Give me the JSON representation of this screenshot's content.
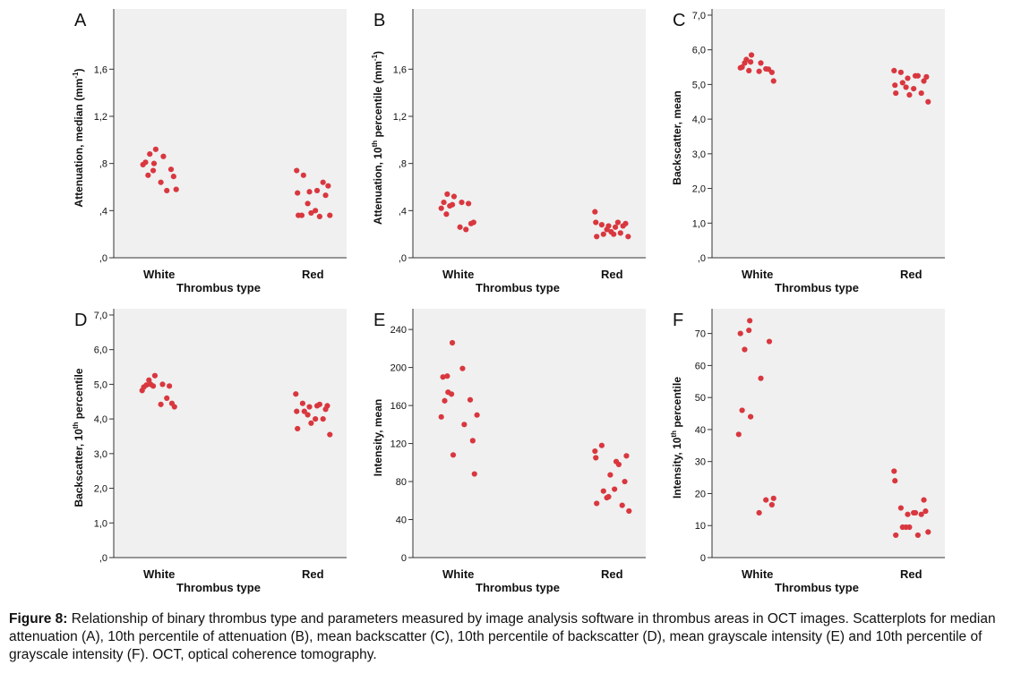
{
  "caption": {
    "label": "Figure 8:",
    "text": " Relationship of binary thrombus type and parameters measured by image analysis software in thrombus areas in OCT images. Scatterplots for median attenuation (A), 10th percentile of attenuation (B), mean backscatter (C), 10th percentile of backscatter (D), mean grayscale intensity (E) and 10th percentile of grayscale intensity (F). OCT, optical coherence tomography."
  },
  "colors": {
    "point": "#d9373f",
    "plot_bg": "#f0f0f0",
    "axis": "#333333"
  },
  "chart_data": [
    {
      "panel": "A",
      "type": "scatter",
      "categories": [
        "White",
        "Red"
      ],
      "xlabel": "Thrombus type",
      "ylabel": "Attenuation, median (mm",
      "ylabel_sup": "-1",
      "ylabel_after": ")",
      "ylim": [
        0,
        1.9
      ],
      "yticks": [
        0,
        0.4,
        0.8,
        1.2,
        1.6
      ],
      "yticklabels": [
        ",0",
        ",4",
        ",8",
        "1,2",
        "1,6"
      ],
      "series": [
        {
          "category": "White",
          "jitter": [
            -0.19,
            -0.16,
            -0.13,
            -0.11,
            -0.07,
            -0.06,
            -0.04,
            0.02,
            0.05,
            0.09,
            0.14,
            0.17,
            0.2
          ],
          "values": [
            0.79,
            0.81,
            0.7,
            0.88,
            0.74,
            0.8,
            0.92,
            0.64,
            0.86,
            0.57,
            0.75,
            0.69,
            0.58
          ]
        },
        {
          "category": "Red",
          "jitter": [
            -0.19,
            -0.18,
            -0.17,
            -0.13,
            -0.11,
            -0.06,
            -0.04,
            -0.02,
            0.03,
            0.05,
            0.08,
            0.12,
            0.15,
            0.18,
            0.2
          ],
          "values": [
            0.74,
            0.55,
            0.36,
            0.36,
            0.7,
            0.46,
            0.56,
            0.38,
            0.4,
            0.57,
            0.35,
            0.64,
            0.53,
            0.61,
            0.36
          ]
        }
      ]
    },
    {
      "panel": "B",
      "type": "scatter",
      "categories": [
        "White",
        "Red"
      ],
      "xlabel": "Thrombus type",
      "ylabel": "Attenuation, 10",
      "ylabel_sup": "th",
      "ylabel_after": " percentile (mm",
      "ylabel_sup2": "-1",
      "ylabel_after2": ")",
      "ylim": [
        0,
        1.9
      ],
      "yticks": [
        0,
        0.4,
        0.8,
        1.2,
        1.6
      ],
      "yticklabels": [
        ",0",
        ",4",
        ",8",
        "1,2",
        "1,6"
      ],
      "series": [
        {
          "category": "White",
          "jitter": [
            -0.2,
            -0.17,
            -0.14,
            -0.13,
            -0.1,
            -0.07,
            -0.05,
            0.02,
            0.04,
            0.09,
            0.12,
            0.15,
            0.18
          ],
          "values": [
            0.42,
            0.47,
            0.37,
            0.54,
            0.44,
            0.45,
            0.52,
            0.26,
            0.47,
            0.24,
            0.46,
            0.29,
            0.3
          ]
        },
        {
          "category": "Red",
          "jitter": [
            -0.2,
            -0.19,
            -0.18,
            -0.12,
            -0.1,
            -0.06,
            -0.04,
            -0.01,
            0.02,
            0.04,
            0.07,
            0.1,
            0.13,
            0.16,
            0.19
          ],
          "values": [
            0.39,
            0.3,
            0.18,
            0.28,
            0.2,
            0.24,
            0.27,
            0.22,
            0.2,
            0.26,
            0.3,
            0.21,
            0.27,
            0.29,
            0.18
          ]
        }
      ]
    },
    {
      "panel": "C",
      "type": "scatter",
      "categories": [
        "White",
        "Red"
      ],
      "xlabel": "Thrombus type",
      "ylabel": "Backscatter, mean",
      "ylim": [
        0,
        7.0
      ],
      "yticks": [
        0,
        1,
        2,
        3,
        4,
        5,
        6,
        7
      ],
      "yticklabels": [
        ",0",
        "1,0",
        "2,0",
        "3,0",
        "4,0",
        "5,0",
        "6,0",
        "7,0"
      ],
      "series": [
        {
          "category": "White",
          "jitter": [
            -0.2,
            -0.18,
            -0.15,
            -0.13,
            -0.1,
            -0.08,
            -0.07,
            0.02,
            0.04,
            0.1,
            0.13,
            0.17,
            0.19
          ],
          "values": [
            5.48,
            5.5,
            5.62,
            5.72,
            5.4,
            5.65,
            5.85,
            5.38,
            5.62,
            5.45,
            5.44,
            5.35,
            5.1
          ]
        },
        {
          "category": "Red",
          "jitter": [
            -0.2,
            -0.19,
            -0.18,
            -0.12,
            -0.1,
            -0.06,
            -0.04,
            -0.02,
            0.03,
            0.05,
            0.08,
            0.12,
            0.15,
            0.18,
            0.2
          ],
          "values": [
            5.4,
            4.98,
            4.75,
            5.35,
            5.05,
            4.92,
            5.18,
            4.7,
            4.88,
            5.25,
            5.25,
            4.75,
            5.1,
            5.22,
            4.5
          ]
        }
      ]
    },
    {
      "panel": "D",
      "type": "scatter",
      "categories": [
        "White",
        "Red"
      ],
      "xlabel": "Thrombus type",
      "ylabel": "Backscatter, 10",
      "ylabel_sup": "th",
      "ylabel_after": " percentile",
      "ylim": [
        0,
        7.0
      ],
      "yticks": [
        0,
        1,
        2,
        3,
        4,
        5,
        6,
        7
      ],
      "yticklabels": [
        ",0",
        "1,0",
        "2,0",
        "3,0",
        "4,0",
        "5,0",
        "6,0",
        "7,0"
      ],
      "series": [
        {
          "category": "White",
          "jitter": [
            -0.2,
            -0.18,
            -0.15,
            -0.12,
            -0.1,
            -0.07,
            -0.05,
            0.02,
            0.04,
            0.09,
            0.12,
            0.15,
            0.18
          ],
          "values": [
            4.82,
            4.92,
            4.98,
            5.12,
            5.0,
            4.95,
            5.25,
            4.42,
            5.0,
            4.6,
            4.95,
            4.45,
            4.35
          ]
        },
        {
          "category": "Red",
          "jitter": [
            -0.2,
            -0.19,
            -0.18,
            -0.12,
            -0.1,
            -0.06,
            -0.04,
            -0.02,
            0.03,
            0.05,
            0.08,
            0.12,
            0.15,
            0.17,
            0.2
          ],
          "values": [
            4.72,
            4.22,
            3.72,
            4.45,
            4.22,
            4.12,
            4.35,
            3.88,
            4.0,
            4.38,
            4.42,
            4.0,
            4.28,
            4.38,
            3.55
          ]
        }
      ]
    },
    {
      "panel": "E",
      "type": "scatter",
      "categories": [
        "White",
        "Red"
      ],
      "xlabel": "Thrombus type",
      "ylabel": "Intensity, mean",
      "ylim": [
        0,
        250
      ],
      "yticks": [
        0,
        40,
        80,
        120,
        160,
        200,
        240
      ],
      "yticklabels": [
        "0",
        "40",
        "80",
        "120",
        "160",
        "200",
        "240"
      ],
      "series": [
        {
          "category": "White",
          "jitter": [
            -0.2,
            -0.18,
            -0.16,
            -0.13,
            -0.12,
            -0.08,
            -0.07,
            -0.06,
            0.05,
            0.07,
            0.14,
            0.17,
            0.19,
            0.22
          ],
          "values": [
            148,
            190,
            165,
            191,
            174,
            172,
            226,
            108,
            199,
            140,
            166,
            123,
            88,
            150
          ]
        },
        {
          "category": "Red",
          "jitter": [
            -0.2,
            -0.19,
            -0.18,
            -0.12,
            -0.1,
            -0.06,
            -0.04,
            -0.02,
            0.03,
            0.05,
            0.08,
            0.12,
            0.15,
            0.17,
            0.2
          ],
          "values": [
            112,
            105,
            57,
            118,
            70,
            63,
            64,
            87,
            72,
            101,
            98,
            55,
            80,
            107,
            49
          ]
        }
      ]
    },
    {
      "panel": "F",
      "type": "scatter",
      "categories": [
        "White",
        "Red"
      ],
      "xlabel": "Thrombus type",
      "ylabel": "Intensity, 10",
      "ylabel_sup": "th",
      "ylabel_after": " percentile",
      "ylim": [
        0,
        75
      ],
      "yticks": [
        0,
        10,
        20,
        30,
        40,
        50,
        60,
        70
      ],
      "yticklabels": [
        "0",
        "10",
        "20",
        "30",
        "40",
        "50",
        "60",
        "70"
      ],
      "series": [
        {
          "category": "White",
          "jitter": [
            -0.22,
            -0.2,
            -0.18,
            -0.15,
            -0.1,
            -0.09,
            -0.08,
            0.02,
            0.04,
            0.1,
            0.14,
            0.17,
            0.19
          ],
          "values": [
            38.5,
            70,
            46,
            65,
            71,
            74,
            44,
            14,
            56,
            18,
            67.5,
            16.5,
            18.5
          ]
        },
        {
          "category": "Red",
          "jitter": [
            -0.2,
            -0.19,
            -0.18,
            -0.12,
            -0.1,
            -0.06,
            -0.04,
            -0.02,
            0.03,
            0.05,
            0.08,
            0.12,
            0.15,
            0.17,
            0.2
          ],
          "values": [
            27,
            24,
            7,
            15.5,
            9.5,
            9.5,
            13.5,
            9.5,
            14,
            14,
            7,
            13.5,
            18,
            14.5,
            8
          ]
        }
      ]
    }
  ]
}
